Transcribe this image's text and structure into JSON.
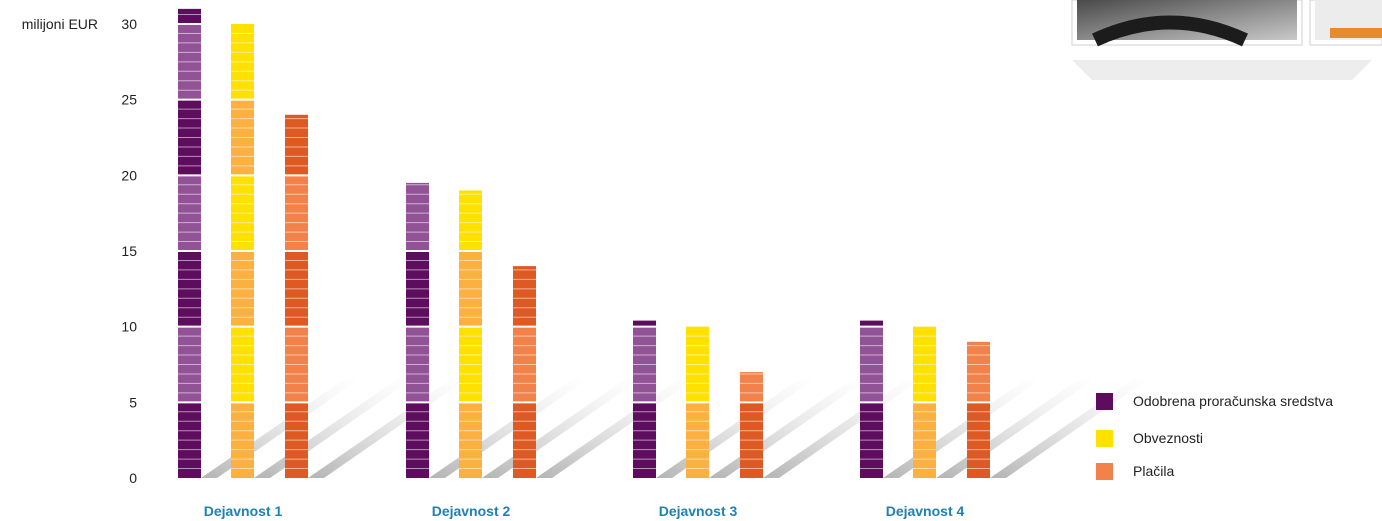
{
  "chart_data": {
    "type": "bar",
    "unit_label": "milijoni EUR",
    "categories": [
      "Dejavnost 1",
      "Dejavnost 2",
      "Dejavnost 3",
      "Dejavnost 4"
    ],
    "series": [
      {
        "name": "Odobrena proračunska sredstva",
        "values": [
          31,
          19.5,
          10.4,
          10.4
        ]
      },
      {
        "name": "Obveznosti",
        "values": [
          30,
          19,
          10,
          10
        ]
      },
      {
        "name": "Plačila",
        "values": [
          24,
          14,
          7,
          9
        ]
      }
    ],
    "ylim": [
      0,
      30
    ],
    "yticks": [
      0,
      5,
      10,
      15,
      20,
      25,
      30
    ],
    "legend_position": "right",
    "colors": {
      "Odobrena proračunska sredstva": {
        "light": "#915396",
        "dark": "#5e0c5e",
        "swatch": "#5e0c5e"
      },
      "Obveznosti": {
        "light": "#ffe100",
        "dark": "#fbb040",
        "swatch": "#ffe100"
      },
      "Plačila": {
        "light": "#f3814a",
        "dark": "#de5a22",
        "swatch": "#f3814a"
      }
    }
  }
}
